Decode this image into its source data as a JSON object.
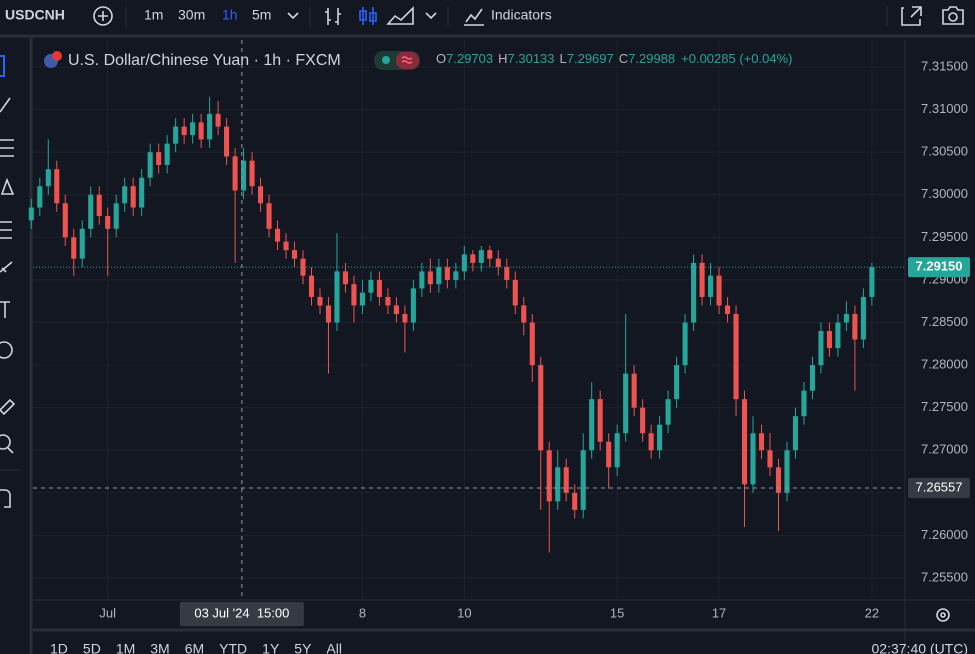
{
  "toolbar": {
    "symbol": "USDCNH",
    "intervals": [
      "1m",
      "30m",
      "1h",
      "5m"
    ],
    "indicators": "Indicators"
  },
  "legend": {
    "title": "U.S. Dollar/Chinese Yuan · 1h · FXCM",
    "o_label": "O",
    "o": "7.29703",
    "h_label": "H",
    "h": "7.30133",
    "l_label": "L",
    "l": "7.29697",
    "c_label": "C",
    "c": "7.29988",
    "change": "+0.00285 (+0.04%)"
  },
  "range_bar": {
    "ranges": [
      "1D",
      "5D",
      "1M",
      "3M",
      "6M",
      "YTD",
      "1Y",
      "5Y",
      "All"
    ],
    "clock": "02:37:40 (UTC)"
  },
  "chart_data": {
    "type": "candlestick",
    "up_color": "#26a69a",
    "down_color": "#ef5350",
    "grid": true,
    "xlim": [
      0.2,
      102.9
    ],
    "xticks": [
      {
        "value": 9,
        "label": "Jul"
      },
      {
        "value": 39,
        "label": "8"
      },
      {
        "value": 51,
        "label": "10"
      },
      {
        "value": 69,
        "label": "15"
      },
      {
        "value": 81,
        "label": "17"
      },
      {
        "value": 99,
        "label": "22"
      }
    ],
    "ylim": [
      7.255,
      7.315
    ],
    "yticks": [
      {
        "value": 7.255,
        "label": "7.25500"
      },
      {
        "value": 7.26,
        "label": "7.26000"
      },
      {
        "value": 7.265,
        "label": "7.26500"
      },
      {
        "value": 7.27,
        "label": "7.27000"
      },
      {
        "value": 7.275,
        "label": "7.27500"
      },
      {
        "value": 7.28,
        "label": "7.28000"
      },
      {
        "value": 7.285,
        "label": "7.28500"
      },
      {
        "value": 7.29,
        "label": "7.29000"
      },
      {
        "value": 7.295,
        "label": "7.29500"
      },
      {
        "value": 7.3,
        "label": "7.30000"
      },
      {
        "value": 7.305,
        "label": "7.30500"
      },
      {
        "value": 7.31,
        "label": "7.31000"
      },
      {
        "value": 7.315,
        "label": "7.31500"
      }
    ],
    "last_price": {
      "value": 7.2915,
      "label": "7.29150",
      "color": "#26a69a"
    },
    "crosshair_price": {
      "value": 7.26557,
      "label": "7.26557"
    },
    "crosshair_time": {
      "value": 24.8,
      "label": "03 Jul '24  15:00"
    },
    "open": [
      7.297,
      7.2985,
      7.301,
      7.303,
      7.299,
      7.295,
      7.2925,
      7.296,
      7.3,
      7.2975,
      7.296,
      7.299,
      7.301,
      7.2985,
      7.302,
      7.305,
      7.3035,
      7.306,
      7.308,
      7.307,
      7.3085,
      7.3065,
      7.3095,
      7.308,
      7.3045,
      7.3005,
      7.304,
      7.301,
      7.299,
      7.296,
      7.2945,
      7.2935,
      7.2925,
      7.2905,
      7.288,
      7.287,
      7.285,
      7.291,
      7.2895,
      7.287,
      7.2885,
      7.29,
      7.288,
      7.287,
      7.286,
      7.285,
      7.289,
      7.291,
      7.2895,
      7.2915,
      7.29,
      7.291,
      7.293,
      7.292,
      7.2935,
      7.2925,
      7.2915,
      7.29,
      7.287,
      7.285,
      7.28,
      7.27,
      7.264,
      7.268,
      7.265,
      7.263,
      7.27,
      7.276,
      7.271,
      7.268,
      7.272,
      7.279,
      7.275,
      7.272,
      7.27,
      7.273,
      7.276,
      7.28,
      7.285,
      7.292,
      7.288,
      7.2905,
      7.287,
      7.286,
      7.276,
      7.266,
      7.272,
      7.27,
      7.268,
      7.265,
      7.27,
      7.274,
      7.277,
      7.28,
      7.284,
      7.282,
      7.285,
      7.286,
      7.283,
      7.288
    ],
    "high": [
      7.2995,
      7.302,
      7.3065,
      7.304,
      7.3,
      7.296,
      7.297,
      7.301,
      7.301,
      7.2985,
      7.3,
      7.302,
      7.302,
      7.303,
      7.306,
      7.306,
      7.307,
      7.309,
      7.309,
      7.3095,
      7.3095,
      7.3115,
      7.311,
      7.309,
      7.3055,
      7.3055,
      7.305,
      7.302,
      7.3,
      7.297,
      7.2955,
      7.2945,
      7.2935,
      7.2915,
      7.289,
      7.288,
      7.2955,
      7.292,
      7.2905,
      7.29,
      7.291,
      7.291,
      7.289,
      7.288,
      7.287,
      7.29,
      7.292,
      7.2925,
      7.2925,
      7.2925,
      7.292,
      7.294,
      7.2935,
      7.294,
      7.294,
      7.2935,
      7.2925,
      7.291,
      7.288,
      7.286,
      7.281,
      7.271,
      7.27,
      7.269,
      7.266,
      7.272,
      7.278,
      7.277,
      7.272,
      7.273,
      7.286,
      7.28,
      7.276,
      7.273,
      7.274,
      7.277,
      7.281,
      7.286,
      7.293,
      7.293,
      7.292,
      7.2915,
      7.288,
      7.287,
      7.277,
      7.274,
      7.273,
      7.272,
      7.269,
      7.271,
      7.275,
      7.278,
      7.281,
      7.285,
      7.285,
      7.286,
      7.2875,
      7.287,
      7.289,
      7.292
    ],
    "low": [
      7.296,
      7.2975,
      7.3,
      7.298,
      7.294,
      7.2905,
      7.2915,
      7.295,
      7.2965,
      7.2905,
      7.295,
      7.298,
      7.2975,
      7.2975,
      7.301,
      7.3025,
      7.3025,
      7.305,
      7.306,
      7.306,
      7.3055,
      7.3055,
      7.307,
      7.3035,
      7.292,
      7.2995,
      7.3,
      7.298,
      7.295,
      7.2935,
      7.2925,
      7.2915,
      7.2895,
      7.287,
      7.286,
      7.279,
      7.284,
      7.2885,
      7.285,
      7.286,
      7.2875,
      7.287,
      7.286,
      7.285,
      7.2815,
      7.284,
      7.288,
      7.2885,
      7.2885,
      7.289,
      7.289,
      7.29,
      7.291,
      7.291,
      7.2915,
      7.2905,
      7.289,
      7.286,
      7.2835,
      7.278,
      7.263,
      7.258,
      7.263,
      7.264,
      7.262,
      7.262,
      7.269,
      7.27,
      7.2655,
      7.267,
      7.271,
      7.274,
      7.271,
      7.269,
      7.269,
      7.272,
      7.275,
      7.279,
      7.284,
      7.287,
      7.287,
      7.286,
      7.285,
      7.274,
      7.261,
      7.265,
      7.269,
      7.267,
      7.2605,
      7.264,
      7.269,
      7.273,
      7.276,
      7.279,
      7.281,
      7.281,
      7.284,
      7.277,
      7.282,
      7.287
    ],
    "close": [
      7.2985,
      7.301,
      7.303,
      7.299,
      7.295,
      7.2925,
      7.296,
      7.3,
      7.2975,
      7.296,
      7.299,
      7.301,
      7.2985,
      7.302,
      7.305,
      7.3035,
      7.306,
      7.308,
      7.307,
      7.3085,
      7.3065,
      7.3095,
      7.308,
      7.3045,
      7.3005,
      7.304,
      7.301,
      7.299,
      7.296,
      7.2945,
      7.2935,
      7.2925,
      7.2905,
      7.288,
      7.287,
      7.285,
      7.291,
      7.2895,
      7.287,
      7.2885,
      7.29,
      7.288,
      7.287,
      7.286,
      7.285,
      7.289,
      7.291,
      7.2895,
      7.2915,
      7.29,
      7.291,
      7.293,
      7.292,
      7.2935,
      7.2925,
      7.2915,
      7.29,
      7.287,
      7.285,
      7.28,
      7.27,
      7.264,
      7.268,
      7.265,
      7.263,
      7.27,
      7.276,
      7.271,
      7.268,
      7.272,
      7.279,
      7.275,
      7.272,
      7.27,
      7.273,
      7.276,
      7.28,
      7.285,
      7.292,
      7.288,
      7.2905,
      7.287,
      7.286,
      7.276,
      7.266,
      7.272,
      7.27,
      7.268,
      7.265,
      7.27,
      7.274,
      7.277,
      7.28,
      7.284,
      7.282,
      7.285,
      7.286,
      7.283,
      7.288,
      7.2915
    ]
  }
}
